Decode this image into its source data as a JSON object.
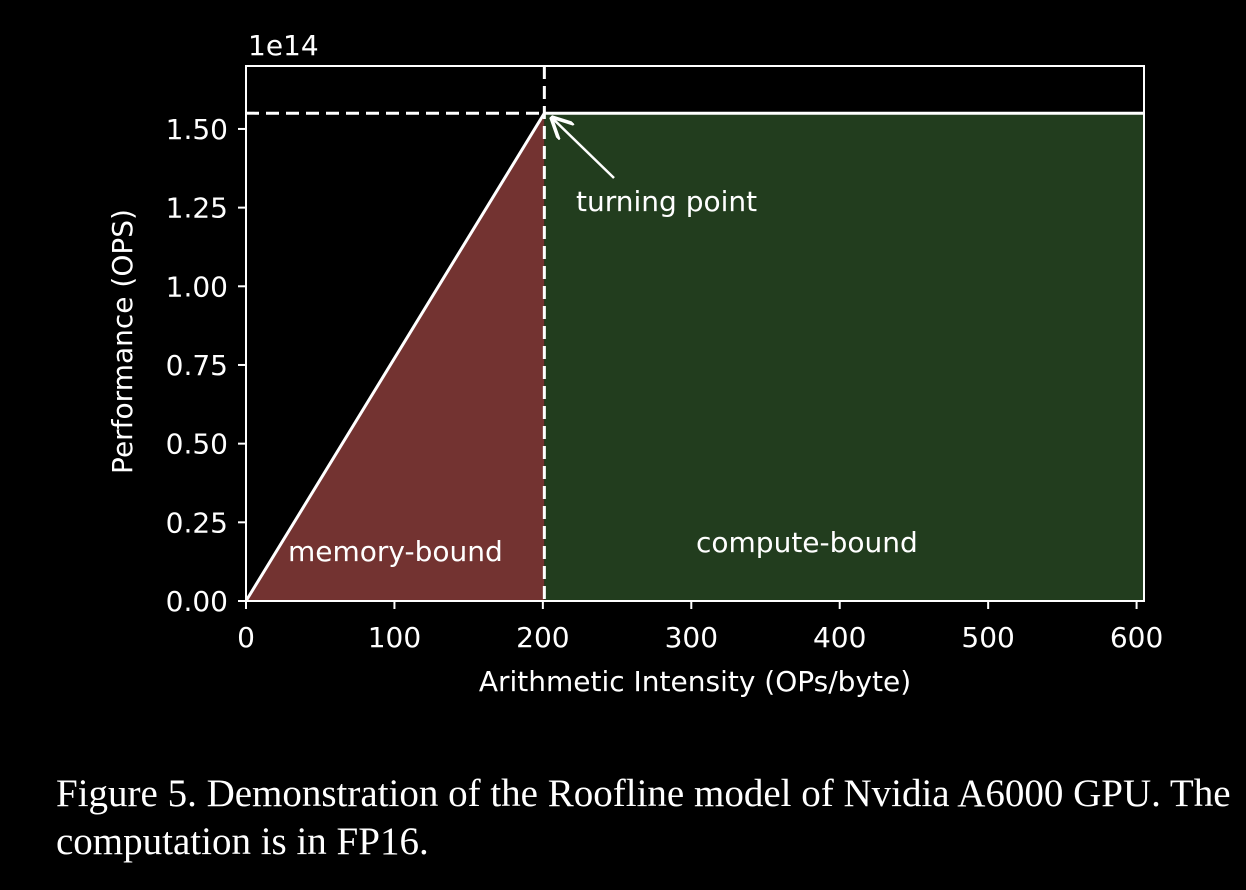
{
  "chart_data": {
    "type": "area",
    "xlabel": "Arithmetic Intensity (OPs/byte)",
    "ylabel": "Performance (OPS)",
    "y_exponent_label": "1e14",
    "xlim": [
      0,
      605
    ],
    "ylim": [
      0,
      1.7
    ],
    "y_scale": "1e14",
    "x_ticks": [
      0,
      100,
      200,
      300,
      400,
      500,
      600
    ],
    "x_tick_labels": [
      "0",
      "100",
      "200",
      "300",
      "400",
      "500",
      "600"
    ],
    "y_ticks": [
      0,
      0.25,
      0.5,
      0.75,
      1.0,
      1.25,
      1.5
    ],
    "y_tick_labels": [
      "0.00",
      "0.25",
      "0.50",
      "0.75",
      "1.00",
      "1.25",
      "1.50"
    ],
    "grid": false,
    "roofline": {
      "points": [
        [
          0,
          0
        ],
        [
          201,
          1.55
        ],
        [
          605,
          1.55
        ]
      ],
      "ridge_x": 201,
      "peak": 1.55
    },
    "regions": [
      {
        "label": "memory-bound",
        "x_start": 0,
        "x_end": 201,
        "color": "#733331"
      },
      {
        "label": "compute-bound",
        "x_start": 201,
        "x_end": 605,
        "color": "#223d1e"
      }
    ],
    "annotations": [
      {
        "text": "turning point",
        "x": 221,
        "y": 1.25,
        "arrow_to": [
          201,
          1.55
        ]
      }
    ],
    "colors": {
      "background": "#000000",
      "foreground": "#ffffff"
    }
  },
  "caption": "Figure 5. Demonstration of the Roofline model of Nvidia A6000 GPU. The computation is in FP16."
}
